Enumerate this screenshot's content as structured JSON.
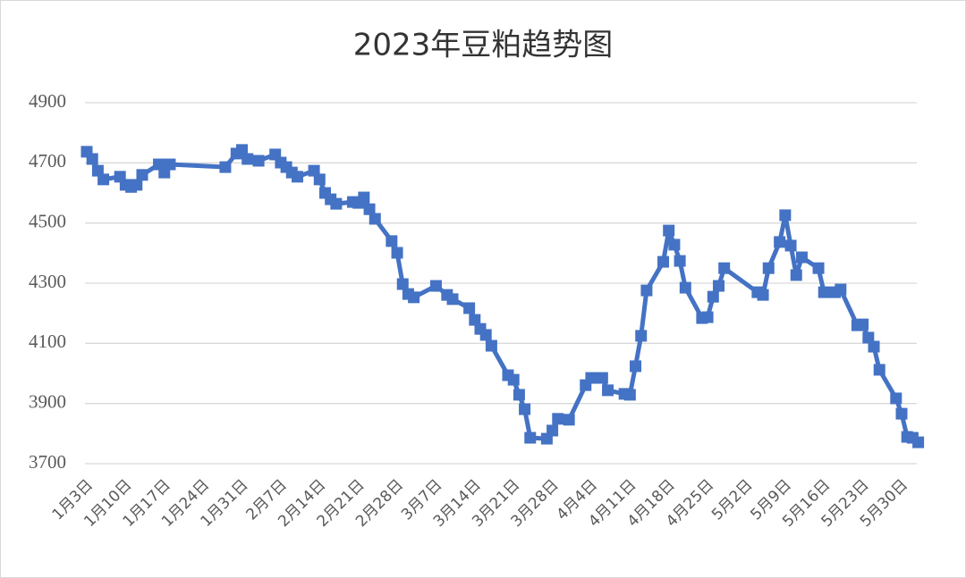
{
  "chart_data": {
    "type": "line",
    "title": "2023年豆粕趋势图",
    "x": [
      "1月3日",
      "1月4日",
      "1月5日",
      "1月6日",
      "1月9日",
      "1月10日",
      "1月11日",
      "1月12日",
      "1月13日",
      "1月16日",
      "1月17日",
      "1月18日",
      "1月28日",
      "1月30日",
      "1月31日",
      "2月1日",
      "2月3日",
      "2月6日",
      "2月7日",
      "2月8日",
      "2月9日",
      "2月10日",
      "2月13日",
      "2月14日",
      "2月15日",
      "2月16日",
      "2月17日",
      "2月20日",
      "2月21日",
      "2月22日",
      "2月23日",
      "2月24日",
      "2月27日",
      "2月28日",
      "3月1日",
      "3月2日",
      "3月3日",
      "3月7日",
      "3月9日",
      "3月10日",
      "3月13日",
      "3月14日",
      "3月15日",
      "3月16日",
      "3月17日",
      "3月20日",
      "3月21日",
      "3月22日",
      "3月23日",
      "3月24日",
      "3月27日",
      "3月28日",
      "3月29日",
      "3月31日",
      "4月3日",
      "4月4日",
      "4月6日",
      "4月7日",
      "4月10日",
      "4月11日",
      "4月12日",
      "4月13日",
      "4月14日",
      "4月17日",
      "4月18日",
      "4月19日",
      "4月20日",
      "4月21日",
      "4月24日",
      "4月25日",
      "4月26日",
      "4月27日",
      "4月28日",
      "5月4日",
      "5月5日",
      "5月6日",
      "5月8日",
      "5月9日",
      "5月10日",
      "5月11日",
      "5月12日",
      "5月15日",
      "5月16日",
      "5月18日",
      "5月19日",
      "5月22日",
      "5月23日",
      "5月24日",
      "5月25日",
      "5月26日",
      "5月29日",
      "5月30日",
      "5月31日",
      "6月1日",
      "6月2日"
    ],
    "series": [
      {
        "color": "#4472c4",
        "values": [
          4737,
          4713,
          4674,
          4645,
          4654,
          4627,
          4620,
          4627,
          4660,
          4695,
          4668,
          4695,
          4686,
          4731,
          4743,
          4713,
          4707,
          4728,
          4701,
          4686,
          4668,
          4654,
          4674,
          4645,
          4600,
          4579,
          4564,
          4570,
          4567,
          4585,
          4546,
          4514,
          4440,
          4401,
          4297,
          4264,
          4253,
          4291,
          4261,
          4247,
          4217,
          4178,
          4148,
          4128,
          4092,
          3994,
          3979,
          3929,
          3881,
          3786,
          3783,
          3810,
          3849,
          3846,
          3961,
          3985,
          3985,
          3944,
          3932,
          3929,
          4024,
          4125,
          4276,
          4371,
          4475,
          4428,
          4374,
          4285,
          4184,
          4187,
          4255,
          4291,
          4350,
          4270,
          4261,
          4350,
          4437,
          4526,
          4425,
          4327,
          4386,
          4350,
          4270,
          4270,
          4279,
          4160,
          4163,
          4119,
          4089,
          4012,
          3917,
          3866,
          3789,
          3786,
          3771
        ]
      }
    ],
    "xticks": [
      "1月3日",
      "1月10日",
      "1月17日",
      "1月24日",
      "1月31日",
      "2月7日",
      "2月14日",
      "2月21日",
      "2月28日",
      "3月7日",
      "3月14日",
      "3月21日",
      "3月28日",
      "4月4日",
      "4月11日",
      "4月18日",
      "4月25日",
      "5月2日",
      "5月9日",
      "5月16日",
      "5月23日",
      "5月30日"
    ],
    "ylim": [
      3700,
      4900
    ],
    "yticks": [
      3700,
      3900,
      4100,
      4300,
      4500,
      4700,
      4900
    ],
    "grid": true
  }
}
